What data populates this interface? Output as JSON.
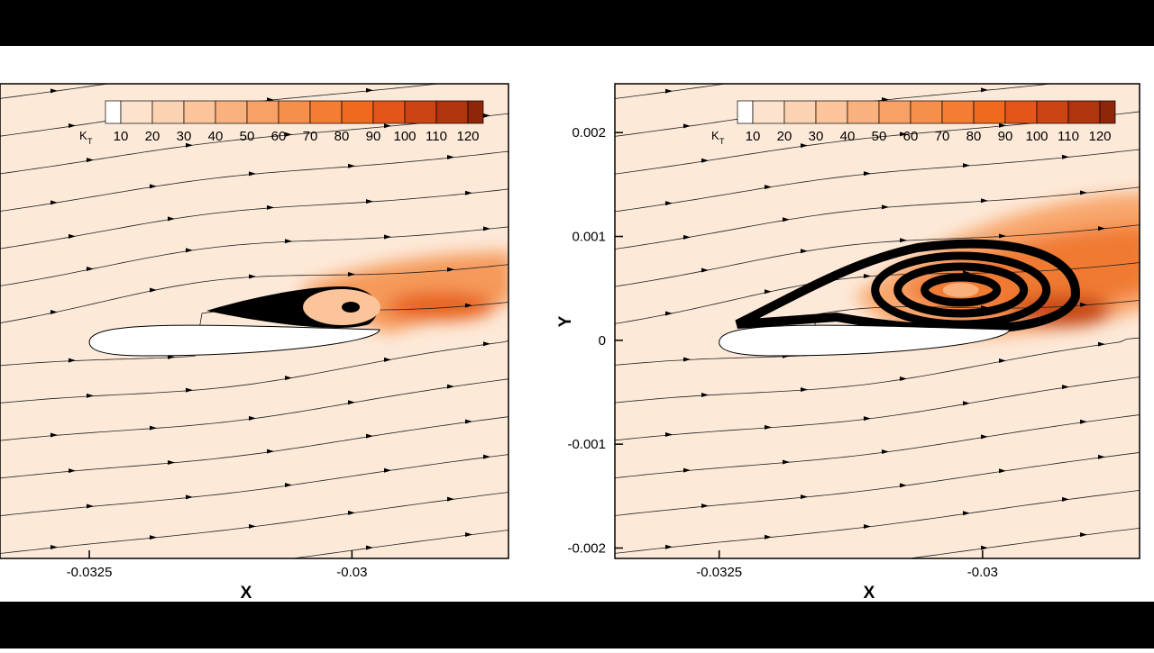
{
  "chart_data": [
    {
      "type": "contour",
      "x_label": "X",
      "xlim": [
        -0.03335,
        -0.02851
      ],
      "xticks": [
        -0.0325,
        -0.03
      ],
      "colorbar_label": "K",
      "colorbar_label_sub": "T",
      "levels": [
        10,
        20,
        30,
        40,
        50,
        60,
        70,
        80,
        90,
        100,
        110,
        120
      ],
      "colors": [
        "#ffffff",
        "#fde3cd",
        "#fcd3b2",
        "#fbc49a",
        "#f9b27f",
        "#f8a166",
        "#f68f4c",
        "#f47c33",
        "#f06a1e",
        "#e3561a",
        "#cc4414",
        "#b0340e",
        "#8e270a"
      ]
    },
    {
      "type": "contour",
      "x_label": "X",
      "y_label": "Y",
      "xlim": [
        -0.03349,
        -0.02851
      ],
      "ylim": [
        -0.0021,
        0.00247
      ],
      "xticks": [
        -0.0325,
        -0.03
      ],
      "yticks": [
        -0.002,
        -0.001,
        0,
        0.001,
        0.002
      ],
      "colorbar_label": "K",
      "colorbar_label_sub": "T",
      "levels": [
        10,
        20,
        30,
        40,
        50,
        60,
        70,
        80,
        90,
        100,
        110,
        120
      ],
      "colors": [
        "#ffffff",
        "#fde3cd",
        "#fcd3b2",
        "#fbc49a",
        "#f9b27f",
        "#f8a166",
        "#f68f4c",
        "#f47c33",
        "#f06a1e",
        "#e3561a",
        "#cc4414",
        "#b0340e",
        "#8e270a"
      ]
    }
  ]
}
